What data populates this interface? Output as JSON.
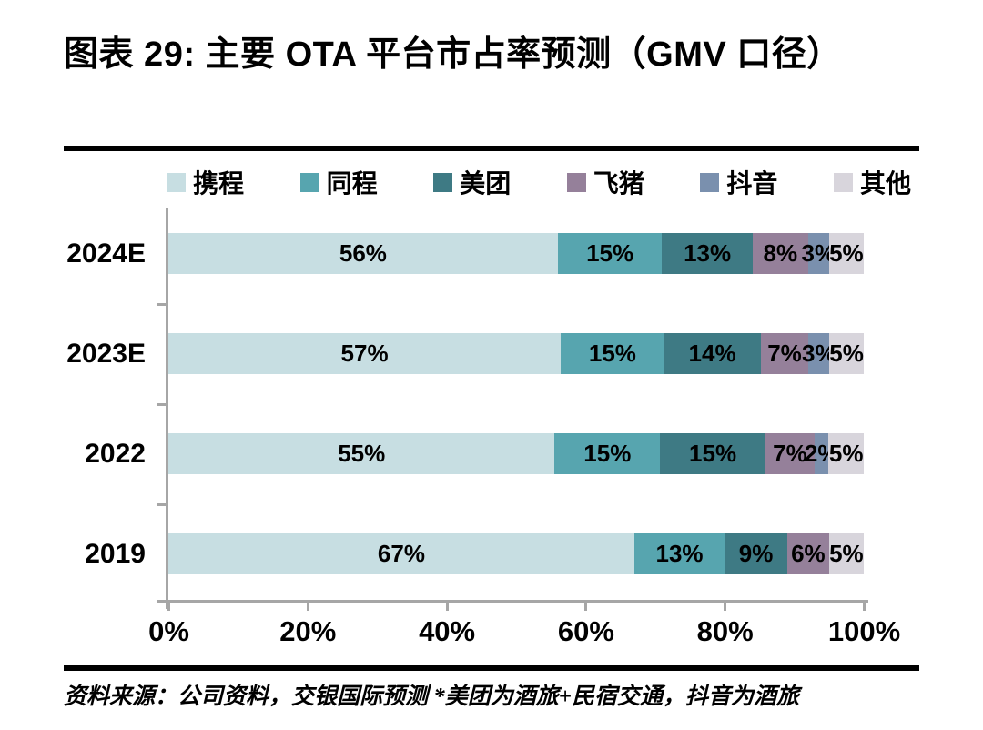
{
  "figure": {
    "title": "图表 29: 主要 OTA 平台市占率预测（GMV 口径）",
    "source_note": "资料来源：公司资料，交银国际预测  *美团为酒旅+民宿交通，抖音为酒旅"
  },
  "colors": {
    "axis": "#a6a6a6",
    "text": "#000000",
    "rule": "#000000",
    "background": "#ffffff"
  },
  "chart_data": {
    "type": "bar",
    "orientation": "horizontal",
    "stacked": true,
    "grid": false,
    "legend_position": "top",
    "value_label_suffix": "%",
    "title": "主要 OTA 平台市占率预测（GMV 口径）",
    "categories": [
      "2024E",
      "2023E",
      "2022",
      "2019"
    ],
    "series": [
      {
        "name": "携程",
        "color": "#c7dee2",
        "values": [
          56,
          57,
          55,
          67
        ]
      },
      {
        "name": "同程",
        "color": "#57a5af",
        "values": [
          15,
          15,
          15,
          13
        ]
      },
      {
        "name": "美团",
        "color": "#3e7a84",
        "values": [
          13,
          14,
          15,
          9
        ]
      },
      {
        "name": "飞猪",
        "color": "#95809a",
        "values": [
          8,
          7,
          7,
          6
        ]
      },
      {
        "name": "抖音",
        "color": "#7a90ae",
        "values": [
          3,
          3,
          2,
          0
        ]
      },
      {
        "name": "其他",
        "color": "#d8d5dc",
        "values": [
          5,
          5,
          5,
          5
        ]
      }
    ],
    "x_axis": {
      "range": [
        0,
        100
      ],
      "ticks": [
        "0%",
        "20%",
        "40%",
        "60%",
        "80%",
        "100%"
      ],
      "tick_values": [
        0,
        20,
        40,
        60,
        80,
        100
      ]
    }
  }
}
